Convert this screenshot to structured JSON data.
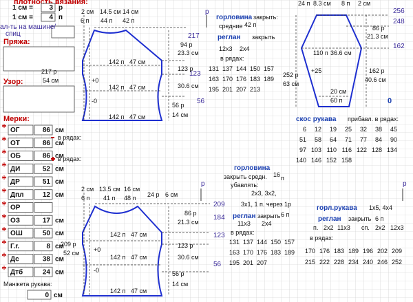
{
  "left_panel": {
    "title": "плотность вязания:",
    "density": [
      {
        "label": "1 см =",
        "value": 3,
        "unit": "р"
      },
      {
        "label": "1 см =",
        "value": 4,
        "unit": "п"
      }
    ],
    "machine_label": [
      "ал-ть на машине/",
      "спиц"
    ],
    "yarn": "Пряжа:",
    "pattern": "Узор:",
    "measures_title": "Мерки:",
    "measures": [
      {
        "label": "ОГ",
        "value": 86,
        "unit": "см"
      },
      {
        "label": "ОТ",
        "value": 86,
        "unit": "см"
      },
      {
        "label": "ОБ",
        "value": 86,
        "unit": "см"
      },
      {
        "label": "ДИ",
        "value": 52,
        "unit": "см"
      },
      {
        "label": "ДР",
        "value": 51,
        "unit": "см"
      },
      {
        "label": "Дпл",
        "value": 12,
        "unit": "см"
      },
      {
        "label": "ОР",
        "value": null
      },
      {
        "label": "ОЗ",
        "value": 17,
        "unit": "см"
      },
      {
        "label": "ОШ",
        "value": 50,
        "unit": "см"
      },
      {
        "label": "Г.г.",
        "value": 8,
        "unit": "см"
      },
      {
        "label": "Дс",
        "value": 38,
        "unit": "см"
      },
      {
        "label": "Дтб",
        "value": 24,
        "unit": "см"
      }
    ],
    "decrease": "в рядах:",
    "increase": "в рядах:",
    "cuff": {
      "label": "Манжета рукава:",
      "value": 0,
      "unit": "см"
    }
  },
  "back": {
    "texts": [
      "2 см",
      "14.5 см",
      "14 см",
      "6 п",
      "44 п",
      "42 п",
      "217",
      "94 р",
      "23.3 см",
      "123",
      "123 р",
      "30.6 см",
      "56",
      "56 р",
      "14 см",
      "217 р",
      "54 см",
      "142 п",
      "47 см",
      "+0",
      "142 п",
      "47 см",
      "-0",
      "142 п",
      "47 см"
    ]
  },
  "back_text": {
    "texts": [
      "р",
      "горловина",
      "закрыть:",
      "средние",
      "42 п",
      "реглан",
      "закрыть",
      "12x3",
      "2x4",
      "в рядах:"
    ],
    "rows": [
      [
        131,
        137,
        144,
        150,
        157
      ],
      [
        163,
        170,
        176,
        183,
        189
      ],
      [
        195,
        201,
        207,
        213
      ]
    ]
  },
  "sleeve": {
    "texts": [
      "24 п",
      "8.3 см",
      "8 п",
      "2 см",
      "256",
      "248",
      "86 р",
      "21.3 см",
      "162",
      "110 п",
      "36.6 см",
      "+25",
      "252 р",
      "63 см",
      "162 р",
      "40.6 см",
      "20 см",
      "60 п",
      "0"
    ]
  },
  "sleeve_text": {
    "texts": [
      "скос рукава",
      "прибавл. в рядах:"
    ],
    "rows": [
      [
        6,
        12,
        19,
        25,
        32,
        38,
        45
      ],
      [
        51,
        58,
        64,
        71,
        77,
        84,
        90
      ],
      [
        97,
        103,
        110,
        116,
        122,
        128,
        134
      ],
      [
        140,
        146,
        152,
        158
      ]
    ]
  },
  "front": {
    "texts": [
      "2 см",
      "13.5 см",
      "16 см",
      "24 р",
      "6 см",
      "6 п",
      "41 п",
      "48 п",
      "209",
      "184",
      "86 р",
      "21.3 см",
      "123",
      "142 п",
      "47 см",
      "209 р",
      "52 см",
      "+0",
      "142 п",
      "47 см",
      "123 р",
      "30.6 см",
      "-0",
      "56",
      "56 р",
      "14 см",
      "142 п",
      "47 см"
    ]
  },
  "front_text": {
    "texts": [
      "р",
      "горловина",
      "закрыть средн.",
      "16",
      "п",
      "убавлять:",
      "2x3, 3x2,",
      "3x1, 1 п. через 1р",
      "реглан",
      "закрыть",
      "6 п",
      "11x3",
      "2x4",
      "в рядах:"
    ],
    "rows": [
      [
        131,
        137,
        144,
        150,
        157
      ],
      [
        163,
        170,
        176,
        183,
        189
      ],
      [
        195,
        201,
        207
      ]
    ]
  },
  "sleeve_text2": {
    "texts": [
      "р",
      "горл.рукава",
      "1x5, 4x4",
      "реглан",
      "закрыть",
      "6 п",
      "п.",
      "2x2",
      "11x3",
      "сп.",
      "2x2",
      "12x3",
      "в рядах:"
    ],
    "rows": [
      [
        170,
        176,
        183,
        189,
        196,
        202,
        209
      ],
      [
        215,
        222,
        228,
        234,
        240,
        246,
        252
      ]
    ]
  }
}
